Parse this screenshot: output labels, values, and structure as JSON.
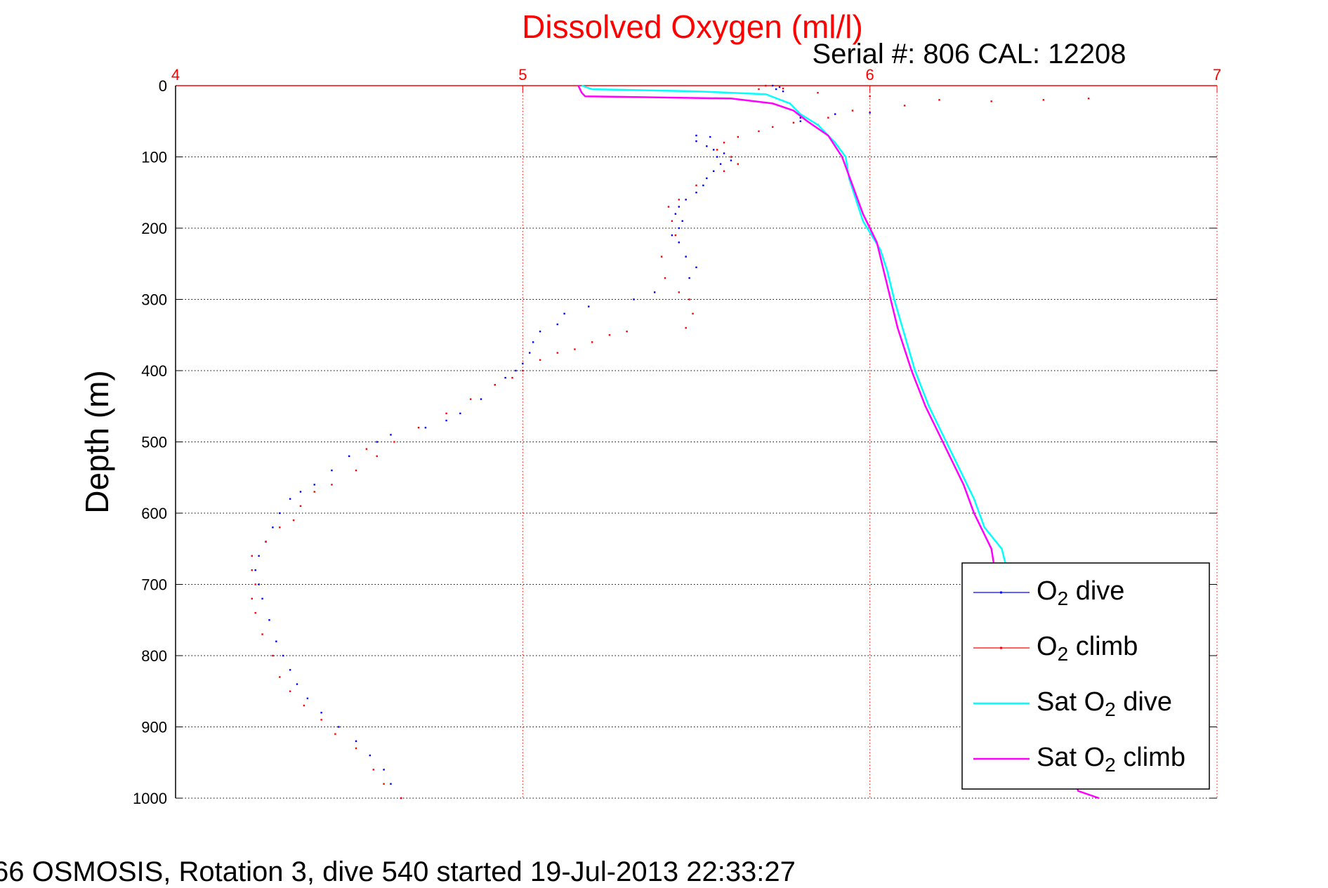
{
  "header": {
    "title": "Dissolved Oxygen (ml/l)",
    "serial_label": "Serial #: 806  CAL: 12208"
  },
  "footer": {
    "text": "66 OSMOSIS, Rotation 3, dive 540 started 19-Jul-2013 22:33:27"
  },
  "colors": {
    "title": "#ff0000",
    "axis_top": "#ff0000",
    "grid": "#000000",
    "o2_dive": "#0000ff",
    "o2_climb": "#ff0000",
    "sat_dive": "#00ffff",
    "sat_climb": "#ff00ff"
  },
  "chart_data": {
    "type": "scatter",
    "title": "Dissolved Oxygen (ml/l)",
    "xlabel": "",
    "ylabel": "Depth (m)",
    "xlim": [
      4,
      7
    ],
    "ylim": [
      0,
      1000
    ],
    "y_reversed": true,
    "x_axis_position": "top",
    "xticks": [
      4,
      5,
      6,
      7
    ],
    "yticks": [
      0,
      100,
      200,
      300,
      400,
      500,
      600,
      700,
      800,
      900,
      1000
    ],
    "grid": true,
    "legend_position": "bottom-right",
    "series": [
      {
        "name": "O2 dive",
        "legend_main": "O",
        "legend_sub": "2",
        "legend_rest": " dive",
        "style": "dots",
        "color": "#0000ff",
        "points": [
          [
            5.72,
            0
          ],
          [
            5.74,
            2
          ],
          [
            5.73,
            5
          ],
          [
            5.75,
            8
          ],
          [
            5.8,
            45
          ],
          [
            5.8,
            50
          ],
          [
            5.85,
            55
          ],
          [
            5.9,
            40
          ],
          [
            6.0,
            38
          ],
          [
            5.5,
            70
          ],
          [
            5.54,
            72
          ],
          [
            5.5,
            78
          ],
          [
            5.53,
            85
          ],
          [
            5.55,
            90
          ],
          [
            5.58,
            95
          ],
          [
            5.56,
            100
          ],
          [
            5.6,
            105
          ],
          [
            5.57,
            110
          ],
          [
            5.55,
            120
          ],
          [
            5.53,
            130
          ],
          [
            5.52,
            140
          ],
          [
            5.5,
            150
          ],
          [
            5.47,
            160
          ],
          [
            5.45,
            170
          ],
          [
            5.44,
            180
          ],
          [
            5.46,
            190
          ],
          [
            5.45,
            200
          ],
          [
            5.43,
            210
          ],
          [
            5.45,
            220
          ],
          [
            5.47,
            240
          ],
          [
            5.5,
            255
          ],
          [
            5.48,
            270
          ],
          [
            5.38,
            290
          ],
          [
            5.32,
            300
          ],
          [
            5.19,
            310
          ],
          [
            5.12,
            320
          ],
          [
            5.1,
            335
          ],
          [
            5.05,
            345
          ],
          [
            5.03,
            360
          ],
          [
            5.02,
            375
          ],
          [
            5.0,
            390
          ],
          [
            4.98,
            400
          ],
          [
            4.95,
            410
          ],
          [
            4.92,
            420
          ],
          [
            4.88,
            440
          ],
          [
            4.82,
            460
          ],
          [
            4.78,
            470
          ],
          [
            4.72,
            480
          ],
          [
            4.62,
            490
          ],
          [
            4.58,
            500
          ],
          [
            4.5,
            520
          ],
          [
            4.45,
            540
          ],
          [
            4.4,
            560
          ],
          [
            4.36,
            570
          ],
          [
            4.33,
            580
          ],
          [
            4.3,
            600
          ],
          [
            4.28,
            620
          ],
          [
            4.26,
            640
          ],
          [
            4.24,
            660
          ],
          [
            4.23,
            680
          ],
          [
            4.24,
            700
          ],
          [
            4.25,
            720
          ],
          [
            4.27,
            750
          ],
          [
            4.29,
            780
          ],
          [
            4.31,
            800
          ],
          [
            4.33,
            820
          ],
          [
            4.35,
            840
          ],
          [
            4.38,
            860
          ],
          [
            4.42,
            880
          ],
          [
            4.47,
            900
          ],
          [
            4.52,
            920
          ],
          [
            4.56,
            940
          ],
          [
            4.6,
            960
          ],
          [
            4.62,
            980
          ],
          [
            4.65,
            1000
          ]
        ]
      },
      {
        "name": "O2 climb",
        "legend_main": "O",
        "legend_sub": "2",
        "legend_rest": " climb",
        "style": "dots",
        "color": "#ff0000",
        "points": [
          [
            5.7,
            0
          ],
          [
            5.68,
            5
          ],
          [
            5.75,
            4
          ],
          [
            5.85,
            10
          ],
          [
            6.0,
            15
          ],
          [
            6.2,
            20
          ],
          [
            6.35,
            22
          ],
          [
            6.5,
            20
          ],
          [
            6.63,
            18
          ],
          [
            6.1,
            28
          ],
          [
            5.95,
            35
          ],
          [
            5.88,
            45
          ],
          [
            5.78,
            52
          ],
          [
            5.72,
            58
          ],
          [
            5.68,
            64
          ],
          [
            5.62,
            72
          ],
          [
            5.58,
            80
          ],
          [
            5.56,
            90
          ],
          [
            5.6,
            100
          ],
          [
            5.62,
            110
          ],
          [
            5.58,
            120
          ],
          [
            5.5,
            140
          ],
          [
            5.45,
            160
          ],
          [
            5.42,
            170
          ],
          [
            5.43,
            190
          ],
          [
            5.44,
            210
          ],
          [
            5.4,
            240
          ],
          [
            5.41,
            270
          ],
          [
            5.45,
            290
          ],
          [
            5.48,
            300
          ],
          [
            5.49,
            320
          ],
          [
            5.47,
            340
          ],
          [
            5.3,
            345
          ],
          [
            5.25,
            350
          ],
          [
            5.2,
            360
          ],
          [
            5.15,
            370
          ],
          [
            5.1,
            375
          ],
          [
            5.05,
            385
          ],
          [
            5.0,
            400
          ],
          [
            4.97,
            410
          ],
          [
            4.92,
            420
          ],
          [
            4.85,
            440
          ],
          [
            4.78,
            460
          ],
          [
            4.7,
            480
          ],
          [
            4.63,
            500
          ],
          [
            4.55,
            510
          ],
          [
            4.58,
            520
          ],
          [
            4.52,
            540
          ],
          [
            4.45,
            560
          ],
          [
            4.4,
            570
          ],
          [
            4.36,
            590
          ],
          [
            4.34,
            610
          ],
          [
            4.3,
            620
          ],
          [
            4.26,
            640
          ],
          [
            4.22,
            660
          ],
          [
            4.22,
            680
          ],
          [
            4.23,
            700
          ],
          [
            4.22,
            720
          ],
          [
            4.23,
            740
          ],
          [
            4.25,
            770
          ],
          [
            4.28,
            800
          ],
          [
            4.3,
            830
          ],
          [
            4.33,
            850
          ],
          [
            4.37,
            870
          ],
          [
            4.42,
            890
          ],
          [
            4.46,
            910
          ],
          [
            4.52,
            930
          ],
          [
            4.57,
            960
          ],
          [
            4.6,
            980
          ],
          [
            4.65,
            1000
          ]
        ]
      },
      {
        "name": "Sat O2 dive",
        "legend_main": "Sat O",
        "legend_sub": "2",
        "legend_rest": " dive",
        "style": "line",
        "color": "#00ffff",
        "points": [
          [
            5.17,
            0
          ],
          [
            5.2,
            5
          ],
          [
            5.5,
            8
          ],
          [
            5.7,
            12
          ],
          [
            5.77,
            25
          ],
          [
            5.8,
            40
          ],
          [
            5.85,
            55
          ],
          [
            5.9,
            80
          ],
          [
            5.93,
            100
          ],
          [
            5.94,
            130
          ],
          [
            5.96,
            160
          ],
          [
            5.98,
            190
          ],
          [
            6.03,
            230
          ],
          [
            6.05,
            260
          ],
          [
            6.07,
            300
          ],
          [
            6.1,
            350
          ],
          [
            6.13,
            400
          ],
          [
            6.17,
            450
          ],
          [
            6.22,
            500
          ],
          [
            6.26,
            540
          ],
          [
            6.3,
            580
          ],
          [
            6.33,
            620
          ],
          [
            6.38,
            650
          ],
          [
            6.39,
            670
          ]
        ]
      },
      {
        "name": "Sat O2 climb",
        "legend_main": "Sat O",
        "legend_sub": "2",
        "legend_rest": " climb",
        "style": "line",
        "color": "#ff00ff",
        "points": [
          [
            5.16,
            0
          ],
          [
            5.17,
            10
          ],
          [
            5.18,
            15
          ],
          [
            5.6,
            18
          ],
          [
            5.72,
            25
          ],
          [
            5.78,
            35
          ],
          [
            5.82,
            50
          ],
          [
            5.88,
            70
          ],
          [
            5.92,
            100
          ],
          [
            5.95,
            140
          ],
          [
            5.98,
            180
          ],
          [
            6.02,
            220
          ],
          [
            6.04,
            260
          ],
          [
            6.06,
            300
          ],
          [
            6.08,
            340
          ],
          [
            6.12,
            400
          ],
          [
            6.16,
            450
          ],
          [
            6.21,
            500
          ],
          [
            6.24,
            530
          ],
          [
            6.27,
            560
          ],
          [
            6.3,
            600
          ],
          [
            6.35,
            650
          ],
          [
            6.36,
            680
          ],
          [
            6.6,
            990
          ],
          [
            6.66,
            1000
          ]
        ]
      }
    ]
  }
}
